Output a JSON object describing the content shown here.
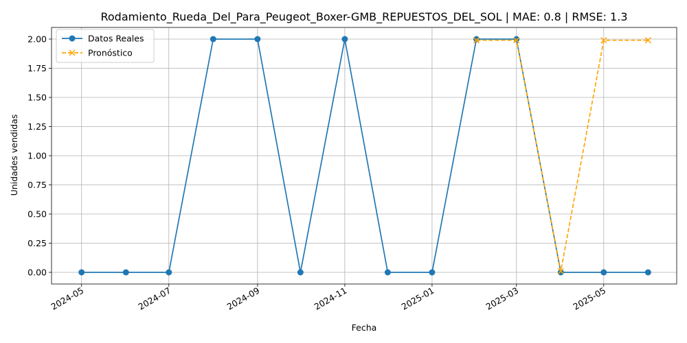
{
  "chart_data": {
    "type": "line",
    "title": "Rodamiento_Rueda_Del_Para_Peugeot_Boxer-GMB_REPUESTOS_DEL_SOL | MAE: 0.8 | RMSE: 1.3",
    "xlabel": "Fecha",
    "ylabel": "Unidades vendidas",
    "x": [
      "2024-05-01",
      "2024-06-01",
      "2024-07-01",
      "2024-08-01",
      "2024-09-01",
      "2024-10-01",
      "2024-11-01",
      "2024-12-01",
      "2025-01-01",
      "2025-02-01",
      "2025-03-01",
      "2025-04-01",
      "2025-05-01",
      "2025-06-01"
    ],
    "x_ticks": [
      "2024-05",
      "2024-07",
      "2024-09",
      "2024-11",
      "2025-01",
      "2025-03",
      "2025-05"
    ],
    "y_ticks": [
      "0.00",
      "0.25",
      "0.50",
      "0.75",
      "1.00",
      "1.25",
      "1.50",
      "1.75",
      "2.00"
    ],
    "ylim": [
      -0.1,
      2.1
    ],
    "grid": true,
    "legend_position": "top-left",
    "series": [
      {
        "name": "Datos Reales",
        "color": "#1f77b4",
        "marker": "circle",
        "linestyle": "solid",
        "x": [
          "2024-05-01",
          "2024-06-01",
          "2024-07-01",
          "2024-08-01",
          "2024-09-01",
          "2024-10-01",
          "2024-11-01",
          "2024-12-01",
          "2025-01-01",
          "2025-02-01",
          "2025-03-01",
          "2025-04-01",
          "2025-05-01",
          "2025-06-01"
        ],
        "values": [
          0,
          0,
          0,
          2,
          2,
          0,
          2,
          0,
          0,
          2,
          2,
          0,
          0,
          0
        ]
      },
      {
        "name": "Pronóstico",
        "color": "#ffa500",
        "marker": "x",
        "linestyle": "dashed",
        "x": [
          "2025-02-01",
          "2025-03-01",
          "2025-04-01",
          "2025-05-01",
          "2025-06-01"
        ],
        "values": [
          1.99,
          1.99,
          0.01,
          1.99,
          1.99
        ]
      }
    ]
  }
}
